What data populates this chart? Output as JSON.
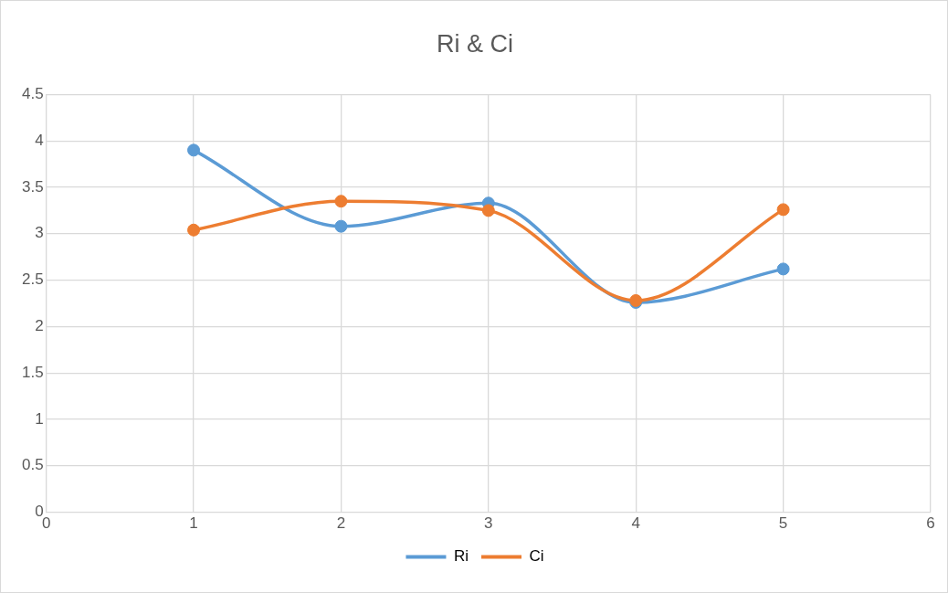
{
  "chart_data": {
    "type": "line",
    "title": "Ri & Ci",
    "x": [
      1,
      2,
      3,
      4,
      5
    ],
    "series": [
      {
        "name": "Ri",
        "color": "#5b9bd5",
        "values": [
          3.9,
          3.08,
          3.33,
          2.26,
          2.62
        ]
      },
      {
        "name": "Ci",
        "color": "#ed7d31",
        "values": [
          3.04,
          3.35,
          3.25,
          2.28,
          3.26
        ]
      }
    ],
    "xlim": [
      0,
      6
    ],
    "xticks": [
      0,
      1,
      2,
      3,
      4,
      5,
      6
    ],
    "ylim": [
      0,
      4.5
    ],
    "yticks": [
      0,
      0.5,
      1,
      1.5,
      2,
      2.5,
      3,
      3.5,
      4,
      4.5
    ],
    "grid": true,
    "legend": "bottom",
    "marker": "circle",
    "line_style": "solid"
  }
}
